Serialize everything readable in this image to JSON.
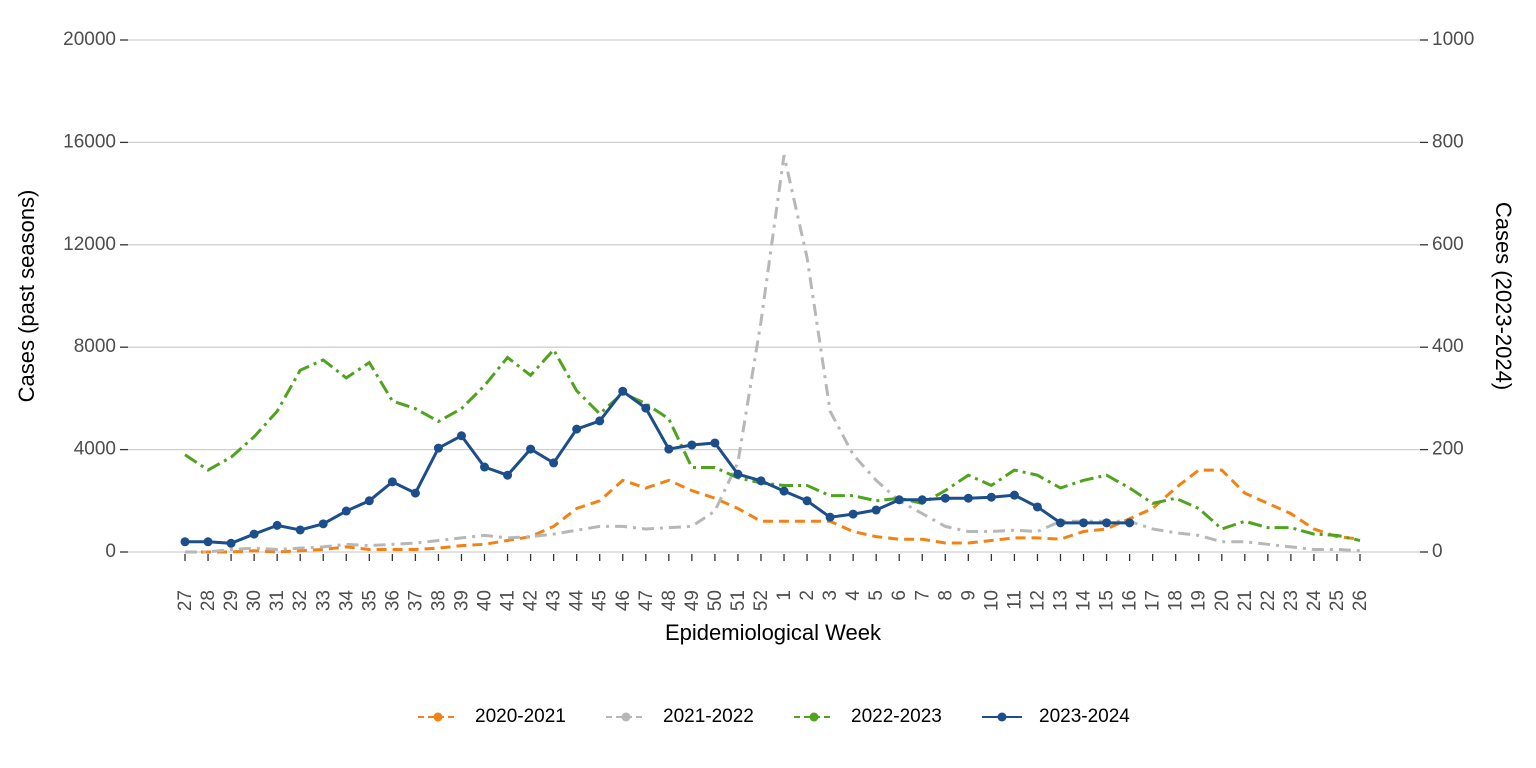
{
  "chart_data": {
    "type": "line",
    "xlabel": "Epidemiological Week",
    "ylabel": "Cases (past seasons)",
    "y2label": "Cases (2023-2024)",
    "categories": [
      "27",
      "28",
      "29",
      "30",
      "31",
      "32",
      "33",
      "34",
      "35",
      "36",
      "37",
      "38",
      "39",
      "40",
      "41",
      "42",
      "43",
      "44",
      "45",
      "46",
      "47",
      "48",
      "49",
      "50",
      "51",
      "52",
      "1",
      "2",
      "3",
      "4",
      "5",
      "6",
      "7",
      "8",
      "9",
      "10",
      "11",
      "12",
      "13",
      "14",
      "15",
      "16",
      "17",
      "18",
      "19",
      "20",
      "21",
      "22",
      "23",
      "24",
      "25",
      "26"
    ],
    "ylim": [
      0,
      20000
    ],
    "yticks": [
      0,
      4000,
      8000,
      12000,
      16000,
      20000
    ],
    "y2lim": [
      0,
      1000
    ],
    "y2ticks": [
      0,
      200,
      400,
      600,
      800,
      1000
    ],
    "grid": true,
    "legend": "bottom",
    "series": [
      {
        "name": "2020-2021",
        "color": "#f28214",
        "dash": "dashed",
        "values": [
          0,
          0,
          0,
          50,
          0,
          50,
          100,
          200,
          100,
          100,
          100,
          150,
          250,
          300,
          450,
          600,
          1000,
          1700,
          2000,
          2800,
          2500,
          2800,
          2400,
          2100,
          1700,
          1200,
          1200,
          1200,
          1200,
          800,
          600,
          500,
          500,
          350,
          350,
          450,
          550,
          550,
          500,
          800,
          900,
          1300,
          1700,
          2500,
          3200,
          3200,
          2300,
          1900,
          1500,
          900,
          600,
          500
        ]
      },
      {
        "name": "2021-2022",
        "color": "#b7b7b7",
        "dash": "dotdash",
        "values": [
          0,
          0,
          100,
          150,
          100,
          150,
          200,
          300,
          250,
          300,
          350,
          450,
          550,
          650,
          550,
          600,
          700,
          850,
          1000,
          1000,
          900,
          950,
          1000,
          1600,
          3500,
          9000,
          15500,
          11500,
          5500,
          3800,
          2800,
          2000,
          1500,
          1000,
          800,
          800,
          850,
          800,
          1200,
          1200,
          1200,
          1200,
          900,
          750,
          650,
          400,
          400,
          300,
          200,
          100,
          100,
          50
        ]
      },
      {
        "name": "2022-2023",
        "color": "#4fa31e",
        "dash": "longdash",
        "values": [
          3800,
          3200,
          3700,
          4500,
          5500,
          7100,
          7500,
          6800,
          7400,
          5900,
          5600,
          5100,
          5600,
          6500,
          7600,
          6900,
          7900,
          6300,
          5400,
          6200,
          5800,
          5200,
          3300,
          3300,
          2900,
          2700,
          2600,
          2600,
          2200,
          2200,
          2000,
          2100,
          1900,
          2400,
          3000,
          2600,
          3200,
          3000,
          2500,
          2800,
          3000,
          2500,
          1900,
          2100,
          1700,
          900,
          1200,
          950,
          950,
          700,
          650,
          450
        ]
      },
      {
        "name": "2023-2024",
        "color": "#1c4e8b",
        "dash": "solid",
        "axis": "y2",
        "points": true,
        "values": [
          20,
          20,
          17,
          35,
          52,
          43,
          55,
          80,
          100,
          137,
          115,
          203,
          227,
          166,
          150,
          201,
          174,
          240,
          256,
          314,
          281,
          201,
          209,
          213,
          152,
          139,
          119,
          100,
          68,
          74,
          82,
          102,
          102,
          105,
          105,
          107,
          111,
          88,
          57,
          57,
          57,
          57,
          null,
          null,
          null,
          null,
          null,
          null,
          null,
          null,
          null,
          null
        ]
      }
    ]
  }
}
